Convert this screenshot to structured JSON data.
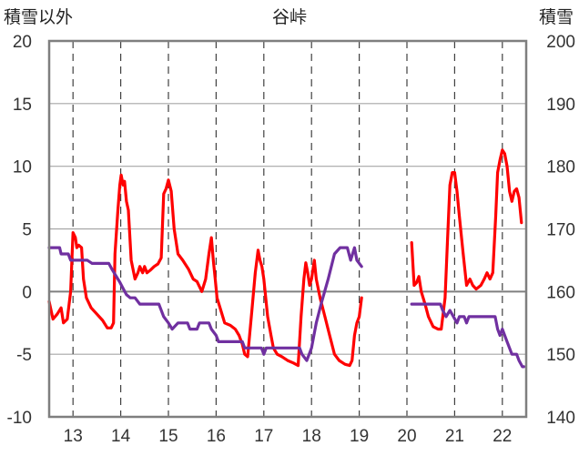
{
  "chart_data": {
    "type": "line",
    "title": "谷峠",
    "ylabel_left": "積雪以外",
    "ylabel_right": "積雪",
    "ylim_left": [
      -10,
      20
    ],
    "ylim_right": [
      140,
      200
    ],
    "left_ticks": [
      "20",
      "15",
      "10",
      "5",
      "0",
      "-5",
      "-10"
    ],
    "right_ticks": [
      "200",
      "190",
      "180",
      "170",
      "160",
      "150",
      "140"
    ],
    "x_ticks": [
      "13",
      "14",
      "15",
      "16",
      "17",
      "18",
      "19",
      "20",
      "21",
      "22"
    ],
    "xlim": [
      12.5,
      22.5
    ],
    "grid": true,
    "colors": {
      "red_series": "#ff0000",
      "purple_series": "#7030a0",
      "frame": "#7f7f7f",
      "zero_line": "#7f7f7f"
    },
    "series": [
      {
        "color": "#ff0000",
        "axis": "left",
        "segments": [
          [
            [
              12.5,
              -0.8
            ],
            [
              12.58,
              -2.2
            ],
            [
              12.67,
              -1.8
            ],
            [
              12.75,
              -1.3
            ],
            [
              12.8,
              -2.5
            ],
            [
              12.88,
              -2.2
            ],
            [
              12.95,
              0
            ],
            [
              13.0,
              4.7
            ],
            [
              13.05,
              4.3
            ],
            [
              13.08,
              3.5
            ],
            [
              13.12,
              3.7
            ],
            [
              13.18,
              3.5
            ],
            [
              13.22,
              1.0
            ],
            [
              13.28,
              -0.5
            ],
            [
              13.38,
              -1.3
            ],
            [
              13.5,
              -1.8
            ],
            [
              13.62,
              -2.3
            ],
            [
              13.72,
              -2.9
            ],
            [
              13.8,
              -2.9
            ],
            [
              13.85,
              -2.5
            ],
            [
              13.88,
              3.0
            ],
            [
              13.94,
              6.5
            ],
            [
              13.98,
              8.5
            ],
            [
              14.01,
              9.3
            ],
            [
              14.05,
              8.5
            ],
            [
              14.08,
              8.8
            ],
            [
              14.12,
              7.2
            ],
            [
              14.16,
              6.5
            ],
            [
              14.22,
              2.5
            ],
            [
              14.3,
              1.0
            ],
            [
              14.36,
              1.5
            ],
            [
              14.4,
              2.0
            ],
            [
              14.46,
              1.5
            ],
            [
              14.5,
              2.0
            ],
            [
              14.55,
              1.5
            ],
            [
              14.62,
              1.7
            ],
            [
              14.7,
              2.0
            ],
            [
              14.78,
              2.2
            ],
            [
              14.85,
              2.7
            ],
            [
              14.9,
              7.8
            ],
            [
              14.95,
              8.2
            ],
            [
              15.0,
              8.9
            ],
            [
              15.06,
              8.0
            ],
            [
              15.12,
              5.0
            ],
            [
              15.2,
              3.0
            ],
            [
              15.3,
              2.5
            ],
            [
              15.42,
              1.8
            ],
            [
              15.52,
              1.0
            ],
            [
              15.6,
              0.8
            ],
            [
              15.7,
              0
            ],
            [
              15.78,
              1.0
            ],
            [
              15.85,
              3.0
            ],
            [
              15.9,
              4.3
            ],
            [
              15.94,
              2.5
            ],
            [
              15.98,
              1.0
            ],
            [
              16.02,
              -0.5
            ],
            [
              16.1,
              -1.5
            ],
            [
              16.18,
              -2.5
            ],
            [
              16.3,
              -2.7
            ],
            [
              16.4,
              -3.0
            ],
            [
              16.48,
              -3.5
            ],
            [
              16.55,
              -4.2
            ],
            [
              16.6,
              -5.0
            ],
            [
              16.66,
              -5.2
            ],
            [
              16.75,
              -1.5
            ],
            [
              16.82,
              1.5
            ],
            [
              16.88,
              3.3
            ],
            [
              16.92,
              2.5
            ],
            [
              16.96,
              2.0
            ],
            [
              17.0,
              1.0
            ],
            [
              17.08,
              -2.0
            ],
            [
              17.15,
              -3.5
            ],
            [
              17.2,
              -4.5
            ],
            [
              17.28,
              -5.0
            ],
            [
              17.38,
              -5.2
            ],
            [
              17.5,
              -5.5
            ],
            [
              17.62,
              -5.7
            ],
            [
              17.72,
              -5.9
            ],
            [
              17.78,
              -2.0
            ],
            [
              17.84,
              1.0
            ],
            [
              17.88,
              2.3
            ],
            [
              17.92,
              1.5
            ],
            [
              17.96,
              0.5
            ],
            [
              18.0,
              1.0
            ],
            [
              18.06,
              2.5
            ],
            [
              18.1,
              1.0
            ],
            [
              18.18,
              -0.5
            ],
            [
              18.28,
              -2.0
            ],
            [
              18.38,
              -3.5
            ],
            [
              18.48,
              -5.0
            ],
            [
              18.58,
              -5.5
            ],
            [
              18.7,
              -5.8
            ],
            [
              18.8,
              -5.9
            ],
            [
              18.85,
              -5.5
            ],
            [
              18.9,
              -3.5
            ],
            [
              18.95,
              -2.5
            ],
            [
              19.0,
              -2.0
            ],
            [
              19.05,
              -0.5
            ]
          ],
          [
            [
              20.1,
              3.9
            ],
            [
              20.15,
              0.5
            ],
            [
              20.2,
              0.7
            ],
            [
              20.25,
              1.2
            ],
            [
              20.3,
              0
            ],
            [
              20.38,
              -1.0
            ],
            [
              20.45,
              -2.0
            ],
            [
              20.55,
              -2.8
            ],
            [
              20.65,
              -3.0
            ],
            [
              20.72,
              -3.0
            ],
            [
              20.8,
              -0.5
            ],
            [
              20.85,
              4.0
            ],
            [
              20.9,
              8.5
            ],
            [
              20.95,
              9.5
            ],
            [
              21.0,
              9.5
            ],
            [
              21.05,
              8.0
            ],
            [
              21.1,
              6.0
            ],
            [
              21.18,
              3.0
            ],
            [
              21.25,
              0.5
            ],
            [
              21.32,
              1.0
            ],
            [
              21.38,
              0.5
            ],
            [
              21.45,
              0.2
            ],
            [
              21.55,
              0.5
            ],
            [
              21.62,
              1.0
            ],
            [
              21.68,
              1.5
            ],
            [
              21.74,
              1.0
            ],
            [
              21.8,
              1.5
            ],
            [
              21.86,
              6.0
            ],
            [
              21.9,
              9.5
            ],
            [
              21.95,
              10.5
            ],
            [
              22.0,
              11.3
            ],
            [
              22.05,
              11.0
            ],
            [
              22.1,
              10.0
            ],
            [
              22.15,
              8.0
            ],
            [
              22.2,
              7.2
            ],
            [
              22.25,
              8.0
            ],
            [
              22.3,
              8.2
            ],
            [
              22.35,
              7.5
            ],
            [
              22.4,
              5.5
            ]
          ]
        ]
      },
      {
        "color": "#7030a0",
        "axis": "right",
        "segments": [
          [
            [
              12.5,
              167
            ],
            [
              12.72,
              167
            ],
            [
              12.75,
              166
            ],
            [
              12.9,
              166
            ],
            [
              12.95,
              165
            ],
            [
              13.3,
              165
            ],
            [
              13.4,
              164.5
            ],
            [
              13.75,
              164.5
            ],
            [
              13.82,
              163.5
            ],
            [
              13.9,
              162.5
            ],
            [
              13.98,
              161.5
            ],
            [
              14.05,
              160.5
            ],
            [
              14.12,
              159.5
            ],
            [
              14.2,
              159
            ],
            [
              14.3,
              159
            ],
            [
              14.4,
              158
            ],
            [
              14.8,
              158
            ],
            [
              14.9,
              156
            ],
            [
              15.0,
              155
            ],
            [
              15.08,
              154
            ],
            [
              15.2,
              155
            ],
            [
              15.4,
              155
            ],
            [
              15.45,
              154
            ],
            [
              15.6,
              154
            ],
            [
              15.65,
              155
            ],
            [
              15.85,
              155
            ],
            [
              15.9,
              154
            ],
            [
              16.0,
              153
            ],
            [
              16.05,
              152
            ],
            [
              16.55,
              152
            ],
            [
              16.6,
              151
            ],
            [
              16.95,
              151
            ],
            [
              17.0,
              150
            ],
            [
              17.05,
              151
            ],
            [
              17.2,
              151
            ],
            [
              17.3,
              151
            ],
            [
              17.5,
              151
            ],
            [
              17.75,
              151
            ],
            [
              17.8,
              150
            ],
            [
              17.9,
              149
            ],
            [
              18.0,
              151
            ],
            [
              18.1,
              155
            ],
            [
              18.2,
              158
            ],
            [
              18.35,
              162
            ],
            [
              18.48,
              166
            ],
            [
              18.6,
              167
            ],
            [
              18.75,
              167
            ],
            [
              18.82,
              165
            ],
            [
              18.9,
              167
            ],
            [
              18.95,
              165
            ],
            [
              19.05,
              164
            ]
          ],
          [
            [
              20.1,
              158
            ],
            [
              20.7,
              158
            ],
            [
              20.75,
              157
            ],
            [
              20.82,
              156
            ],
            [
              20.9,
              157
            ],
            [
              21.05,
              155
            ],
            [
              21.1,
              156
            ],
            [
              21.2,
              156
            ],
            [
              21.25,
              155
            ],
            [
              21.3,
              156
            ],
            [
              21.85,
              156
            ],
            [
              21.9,
              154
            ],
            [
              21.95,
              153
            ],
            [
              22.0,
              154
            ],
            [
              22.1,
              152
            ],
            [
              22.2,
              150
            ],
            [
              22.3,
              150
            ],
            [
              22.35,
              149
            ],
            [
              22.42,
              148
            ],
            [
              22.45,
              148
            ]
          ]
        ]
      }
    ]
  }
}
